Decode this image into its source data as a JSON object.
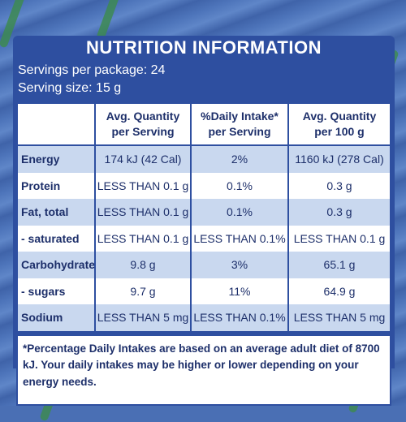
{
  "panel": {
    "title": "NUTRITION INFORMATION",
    "servings_per_package": "Servings per package: 24",
    "serving_size": "Serving size: 15 g"
  },
  "columns": {
    "col1_line1": "Avg. Quantity",
    "col1_line2": "per Serving",
    "col2_line1": "%Daily Intake*",
    "col2_line2": "per Serving",
    "col3_line1": "Avg. Quantity",
    "col3_line2": "per 100 g"
  },
  "rows": [
    {
      "label": "Energy",
      "per_serving": "174 kJ (42 Cal)",
      "daily_intake": "2%",
      "per_100g": "1160 kJ (278 Cal)"
    },
    {
      "label": "Protein",
      "per_serving": "LESS THAN 0.1 g",
      "daily_intake": "0.1%",
      "per_100g": "0.3 g"
    },
    {
      "label": "Fat, total",
      "per_serving": "LESS THAN 0.1 g",
      "daily_intake": "0.1%",
      "per_100g": "0.3 g"
    },
    {
      "label": "- saturated",
      "per_serving": "LESS THAN 0.1 g",
      "daily_intake": "LESS THAN 0.1%",
      "per_100g": "LESS THAN 0.1 g"
    },
    {
      "label": "Carbohydrate",
      "per_serving": "9.8 g",
      "daily_intake": "3%",
      "per_100g": "65.1 g"
    },
    {
      "label": "- sugars",
      "per_serving": "9.7 g",
      "daily_intake": "11%",
      "per_100g": "64.9 g"
    },
    {
      "label": "Sodium",
      "per_serving": "LESS THAN 5 mg",
      "daily_intake": "LESS THAN 0.1%",
      "per_100g": "LESS THAN 5 mg"
    }
  ],
  "footer": {
    "note": "*Percentage Daily Intakes are based on an average adult diet of 8700 kJ. Your daily intakes may be higher or lower depending on your energy needs."
  },
  "colors": {
    "panel_blue": "#2e4fa0",
    "band_blue": "#c9d8ef",
    "text_navy": "#1d2f6a"
  }
}
